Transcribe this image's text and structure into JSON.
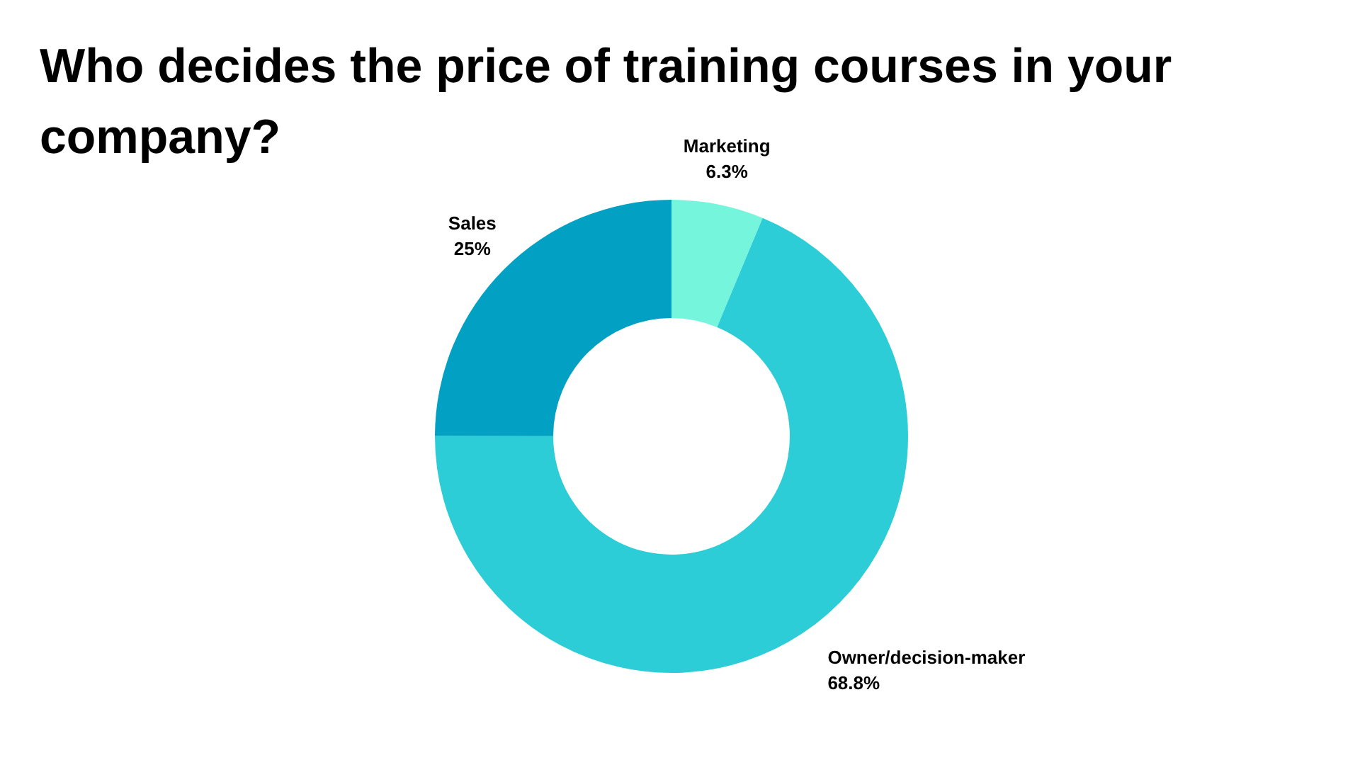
{
  "chart_data": {
    "type": "donut",
    "title": "Who decides the price of training courses in your company?",
    "categories": [
      "Marketing",
      "Owner/decision-maker",
      "Sales"
    ],
    "values": [
      6.3,
      68.8,
      25
    ],
    "value_labels": [
      "6.3%",
      "68.8%",
      "25%"
    ],
    "colors": [
      "#74f5dc",
      "#2ccdd6",
      "#02a0c2"
    ],
    "legend": false
  }
}
